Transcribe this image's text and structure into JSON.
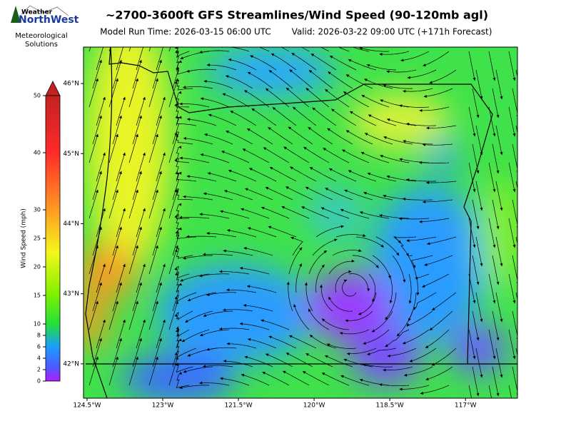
{
  "logo": {
    "top": "Weather",
    "brand": "NorthWest",
    "line1": "Meteorological",
    "line2": "Solutions"
  },
  "header": {
    "title": "~2700-3600ft GFS Streamlines/Wind Speed (90-120mb agl)",
    "run_time": "Model Run Time: 2026-03-15 06:00 UTC",
    "valid_time": "Valid: 2026-03-22 09:00 UTC  (+171h Forecast)"
  },
  "map": {
    "xlim": [
      -124.57,
      -115.97
    ],
    "ylim": [
      41.51,
      46.52
    ],
    "xticks": [
      {
        "value": -124.5,
        "label": "124.5°W"
      },
      {
        "value": -123,
        "label": "123°W"
      },
      {
        "value": -121.5,
        "label": "121.5°W"
      },
      {
        "value": -120,
        "label": "120°W"
      },
      {
        "value": -118.5,
        "label": "118.5°W"
      },
      {
        "value": -117,
        "label": "117°W"
      }
    ],
    "yticks": [
      {
        "value": 42,
        "label": "42°N"
      },
      {
        "value": 43,
        "label": "43°N"
      },
      {
        "value": 44,
        "label": "44°N"
      },
      {
        "value": 45,
        "label": "45°N"
      },
      {
        "value": 46,
        "label": "46°N"
      }
    ]
  },
  "colorbar": {
    "label": "Wind Speed (mph)",
    "lim": [
      0,
      50
    ],
    "ticks": [
      0,
      2,
      4,
      6,
      8,
      10,
      15,
      20,
      25,
      30,
      40,
      50
    ]
  }
}
